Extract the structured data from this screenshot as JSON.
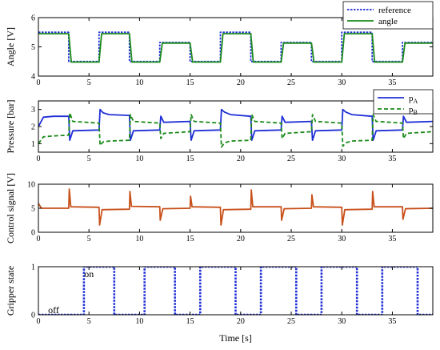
{
  "chart_data": [
    {
      "type": "line",
      "ylabel": "Angle [V]",
      "xlim": [
        0,
        39
      ],
      "ylim": [
        4,
        6
      ],
      "xticks": [
        0,
        5,
        10,
        15,
        20,
        25,
        30,
        35
      ],
      "yticks": [
        4,
        5,
        6
      ],
      "grid": false,
      "legend_position": "top-right",
      "series": [
        {
          "name": "reference",
          "color": "#1f2fd6",
          "style": "dotted",
          "x": [
            0,
            3,
            3,
            6,
            6,
            9,
            9,
            12,
            12,
            15,
            15,
            18,
            18,
            21,
            21,
            24,
            24,
            27,
            27,
            30,
            30,
            33,
            33,
            36,
            36,
            39
          ],
          "y": [
            5.5,
            5.5,
            4.5,
            4.5,
            5.5,
            5.5,
            4.5,
            4.5,
            5.15,
            5.15,
            4.5,
            4.5,
            5.5,
            5.5,
            4.5,
            4.5,
            5.15,
            5.15,
            4.5,
            4.5,
            5.5,
            5.5,
            4.5,
            4.5,
            5.15,
            5.15
          ]
        },
        {
          "name": "angle",
          "color": "#1a8a1a",
          "style": "solid",
          "x": [
            0,
            3,
            3.25,
            6,
            6.25,
            9,
            9.25,
            12,
            12.25,
            15,
            15.25,
            18,
            18.25,
            21,
            21.25,
            24,
            24.25,
            27,
            27.25,
            30,
            30.25,
            33,
            33.25,
            36,
            36.25,
            39
          ],
          "y": [
            5.45,
            5.45,
            4.48,
            4.48,
            5.45,
            5.45,
            4.48,
            4.48,
            5.13,
            5.13,
            4.48,
            4.48,
            5.45,
            5.45,
            4.48,
            4.48,
            5.13,
            5.13,
            4.48,
            4.48,
            5.45,
            5.45,
            4.48,
            4.48,
            5.13,
            5.13
          ]
        }
      ]
    },
    {
      "type": "line",
      "ylabel": "Pressure [bar]",
      "xlim": [
        0,
        39
      ],
      "ylim": [
        0.5,
        3.5
      ],
      "xticks": [
        0,
        5,
        10,
        15,
        20,
        25,
        30,
        35
      ],
      "yticks": [
        1,
        2,
        3
      ],
      "grid": false,
      "legend_position": "top-right",
      "series": [
        {
          "name": "pA",
          "label_main": "p",
          "label_sub": "A",
          "color": "#1f2fd6",
          "style": "solid",
          "x": [
            0,
            0.5,
            1.5,
            3,
            3.1,
            3.4,
            6,
            6.1,
            6.4,
            7,
            9,
            9.1,
            9.4,
            12,
            12.1,
            12.4,
            15,
            15.1,
            15.4,
            18,
            18.1,
            18.4,
            19,
            21,
            21.1,
            21.4,
            24,
            24.1,
            24.4,
            27,
            27.1,
            27.4,
            30,
            30.1,
            30.4,
            31,
            33,
            33.1,
            33.4,
            36,
            36.1,
            36.4,
            39
          ],
          "y": [
            2.0,
            2.55,
            2.6,
            2.6,
            1.2,
            1.75,
            1.8,
            3.0,
            2.8,
            2.7,
            2.65,
            1.2,
            1.75,
            1.8,
            2.6,
            2.25,
            2.3,
            1.2,
            1.75,
            1.8,
            3.0,
            2.85,
            2.7,
            2.6,
            1.2,
            1.75,
            1.8,
            2.6,
            2.25,
            2.3,
            1.2,
            1.75,
            1.8,
            3.0,
            2.85,
            2.7,
            2.6,
            1.2,
            1.75,
            1.8,
            2.6,
            2.25,
            2.3
          ]
        },
        {
          "name": "pB",
          "label_main": "p",
          "label_sub": "B",
          "color": "#1a8a1a",
          "style": "dashed",
          "x": [
            0,
            0.5,
            1.5,
            3,
            3.1,
            3.4,
            6,
            6.1,
            6.4,
            7,
            9,
            9.1,
            9.4,
            12,
            12.1,
            12.4,
            15,
            15.1,
            15.4,
            18,
            18.1,
            18.4,
            19,
            21,
            21.1,
            21.4,
            24,
            24.1,
            24.4,
            27,
            27.1,
            27.4,
            30,
            30.1,
            30.4,
            31,
            33,
            33.1,
            33.4,
            36,
            36.1,
            36.4,
            39
          ],
          "y": [
            1.0,
            1.4,
            1.45,
            1.5,
            2.8,
            2.3,
            2.2,
            0.9,
            1.1,
            1.15,
            1.2,
            2.7,
            2.3,
            2.2,
            1.3,
            1.6,
            1.7,
            2.7,
            2.3,
            2.2,
            0.8,
            1.05,
            1.15,
            1.2,
            2.7,
            2.3,
            2.2,
            1.3,
            1.6,
            1.7,
            2.7,
            2.3,
            2.2,
            0.85,
            1.05,
            1.15,
            1.2,
            2.7,
            2.3,
            2.2,
            1.3,
            1.6,
            1.7
          ]
        }
      ]
    },
    {
      "type": "line",
      "ylabel": "Control signal [V]",
      "xlim": [
        0,
        39
      ],
      "ylim": [
        0,
        10
      ],
      "xticks": [
        0,
        5,
        10,
        15,
        20,
        25,
        30,
        35
      ],
      "yticks": [
        0,
        5,
        10
      ],
      "grid": false,
      "series": [
        {
          "name": "",
          "color": "#c8501a",
          "style": "solid",
          "x": [
            0,
            0.3,
            3,
            3.05,
            3.2,
            6,
            6.05,
            6.3,
            9,
            9.05,
            9.2,
            12,
            12.05,
            12.3,
            15,
            15.05,
            15.2,
            18,
            18.05,
            18.3,
            21,
            21.05,
            21.2,
            24,
            24.05,
            24.3,
            27,
            27.05,
            27.2,
            30,
            30.05,
            30.3,
            33,
            33.05,
            33.2,
            36,
            36.05,
            36.3,
            39
          ],
          "y": [
            6.0,
            5.0,
            5.0,
            9.0,
            5.3,
            5.2,
            1.5,
            4.7,
            4.8,
            8.5,
            5.4,
            5.3,
            2.5,
            4.9,
            5.0,
            7.5,
            5.3,
            5.2,
            1.5,
            4.7,
            4.8,
            8.8,
            5.3,
            5.3,
            2.5,
            4.9,
            5.0,
            7.8,
            5.3,
            5.2,
            1.5,
            4.7,
            4.8,
            8.5,
            5.3,
            5.3,
            2.7,
            4.9,
            5.0
          ]
        }
      ]
    },
    {
      "type": "line",
      "ylabel": "Gripper state",
      "xlabel": "Time [s]",
      "xlim": [
        0,
        39
      ],
      "ylim": [
        0,
        1
      ],
      "xticks": [
        0,
        5,
        10,
        15,
        20,
        25,
        30,
        35
      ],
      "yticks": [
        0,
        1
      ],
      "grid": false,
      "annotations": [
        {
          "text": "on",
          "x": 5.0,
          "y": 0.85
        },
        {
          "text": "off",
          "x": 1.5,
          "y": 0.1
        }
      ],
      "series": [
        {
          "name": "",
          "color": "#1f2fd6",
          "style": "dotted",
          "x": [
            0,
            4.5,
            4.5,
            7.5,
            7.5,
            10.5,
            10.5,
            13.5,
            13.5,
            16,
            16,
            19.5,
            19.5,
            22,
            22,
            25.5,
            25.5,
            28,
            28,
            31.5,
            31.5,
            34,
            34,
            37.5,
            37.5,
            39
          ],
          "y": [
            0,
            0,
            1,
            1,
            0,
            0,
            1,
            1,
            0,
            0,
            1,
            1,
            0,
            0,
            1,
            1,
            0,
            0,
            1,
            1,
            0,
            0,
            1,
            1,
            0,
            0
          ]
        }
      ]
    }
  ]
}
